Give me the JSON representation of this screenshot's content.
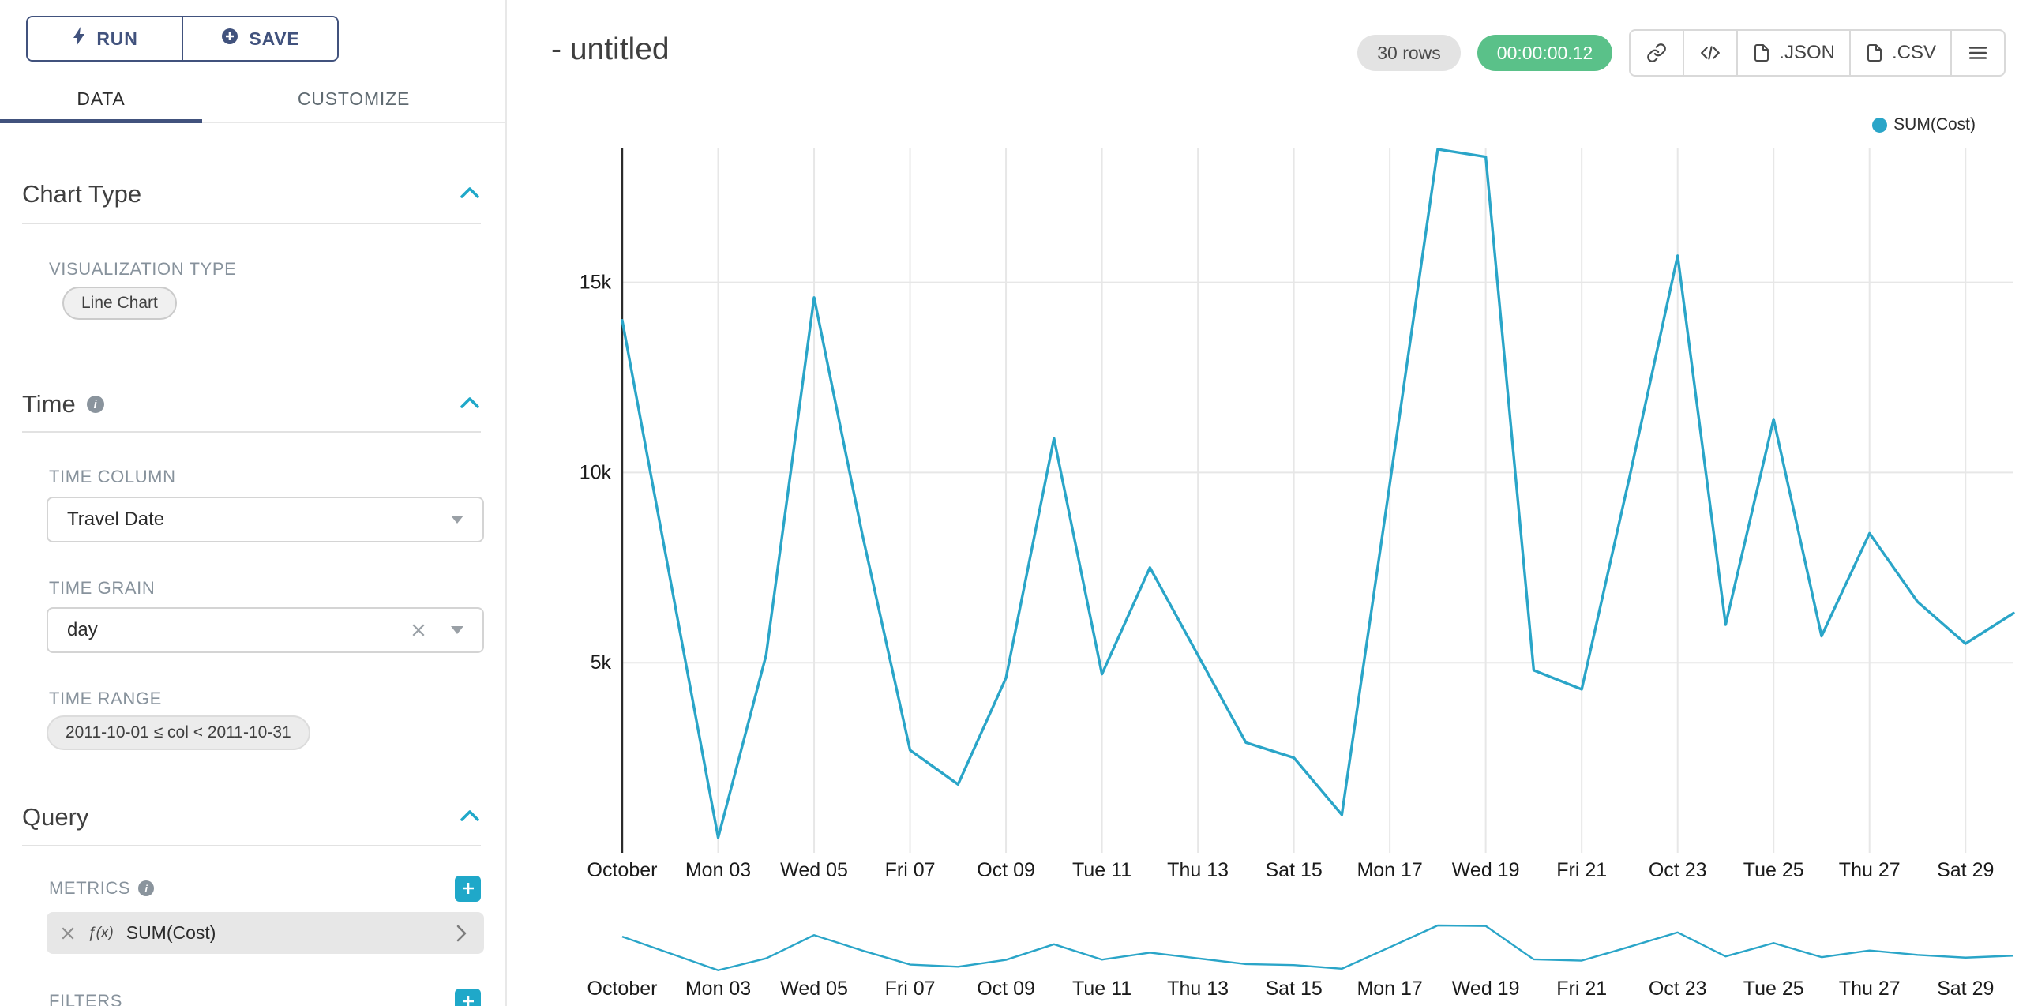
{
  "colors": {
    "navy": "#41527d",
    "accent": "#1fa8c9",
    "success": "#5ac189",
    "line": "#2aa5c8"
  },
  "sidebar": {
    "run_label": "RUN",
    "save_label": "SAVE",
    "tabs": [
      {
        "label": "DATA"
      },
      {
        "label": "CUSTOMIZE"
      }
    ],
    "sections": {
      "chart_type": {
        "title": "Chart Type",
        "visualization_type_label": "VISUALIZATION TYPE",
        "visualization_type_value": "Line Chart"
      },
      "time": {
        "title": "Time",
        "time_column_label": "TIME COLUMN",
        "time_column_value": "Travel Date",
        "time_grain_label": "TIME GRAIN",
        "time_grain_value": "day",
        "time_range_label": "TIME RANGE",
        "time_range_value": "2011-10-01 ≤ col < 2011-10-31"
      },
      "query": {
        "title": "Query",
        "metrics_label": "METRICS",
        "metric_fx": "ƒ(x)",
        "metric_value": "SUM(Cost)",
        "filters_label": "FILTERS"
      }
    }
  },
  "header": {
    "title": "- untitled",
    "rows_badge": "30 rows",
    "timer_badge": "00:00:00.12",
    "export_json_label": ".JSON",
    "export_csv_label": ".CSV"
  },
  "legend": {
    "label": "SUM(Cost)"
  },
  "chart_data": {
    "type": "line",
    "title": "",
    "xlabel": "",
    "ylabel": "",
    "color": "#2aa5c8",
    "grid": true,
    "legend_position": "top-right",
    "x": [
      "2011-10-01",
      "2011-10-02",
      "2011-10-03",
      "2011-10-04",
      "2011-10-05",
      "2011-10-06",
      "2011-10-07",
      "2011-10-08",
      "2011-10-09",
      "2011-10-10",
      "2011-10-11",
      "2011-10-12",
      "2011-10-13",
      "2011-10-14",
      "2011-10-15",
      "2011-10-16",
      "2011-10-17",
      "2011-10-18",
      "2011-10-19",
      "2011-10-20",
      "2011-10-21",
      "2011-10-22",
      "2011-10-23",
      "2011-10-24",
      "2011-10-25",
      "2011-10-26",
      "2011-10-27",
      "2011-10-28",
      "2011-10-29",
      "2011-10-30"
    ],
    "series": [
      {
        "name": "SUM(Cost)",
        "values": [
          14000,
          7200,
          400,
          5200,
          14600,
          8400,
          2700,
          1800,
          4600,
          10900,
          4700,
          7500,
          5200,
          2900,
          2500,
          1000,
          9700,
          18500,
          18300,
          4800,
          4300,
          9900,
          15700,
          6000,
          11400,
          5700,
          8400,
          6600,
          5500,
          6300
        ]
      }
    ],
    "ylim": [
      0,
      18500
    ],
    "y_ticks": [
      {
        "value": 5000,
        "label": "5k"
      },
      {
        "value": 10000,
        "label": "10k"
      },
      {
        "value": 15000,
        "label": "15k"
      }
    ],
    "x_ticks": [
      {
        "i": 0,
        "label": "October"
      },
      {
        "i": 2,
        "label": "Mon 03"
      },
      {
        "i": 4,
        "label": "Wed 05"
      },
      {
        "i": 6,
        "label": "Fri 07"
      },
      {
        "i": 8,
        "label": "Oct 09"
      },
      {
        "i": 10,
        "label": "Tue 11"
      },
      {
        "i": 12,
        "label": "Thu 13"
      },
      {
        "i": 14,
        "label": "Sat 15"
      },
      {
        "i": 16,
        "label": "Mon 17"
      },
      {
        "i": 18,
        "label": "Wed 19"
      },
      {
        "i": 20,
        "label": "Fri 21"
      },
      {
        "i": 22,
        "label": "Oct 23"
      },
      {
        "i": 24,
        "label": "Tue 25"
      },
      {
        "i": 26,
        "label": "Thu 27"
      },
      {
        "i": 28,
        "label": "Sat 29"
      }
    ],
    "has_mini_axis_chart": true
  }
}
